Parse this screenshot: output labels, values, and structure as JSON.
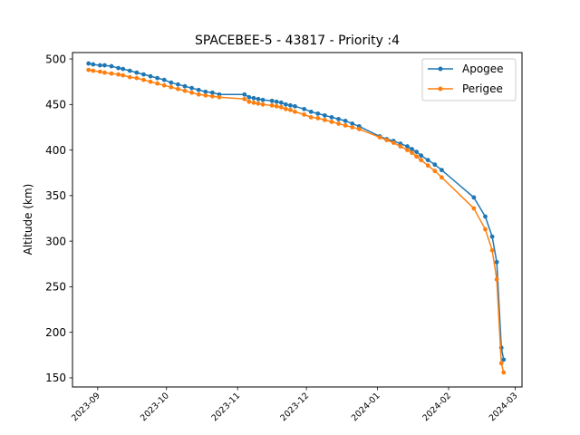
{
  "chart_data": {
    "type": "line",
    "title": "SPACEBEE-5 - 43817 - Priority :4",
    "xlabel": "",
    "ylabel": "Altitude (km)",
    "x_type": "date",
    "xlim": [
      "2023-08-21",
      "2024-03-04"
    ],
    "ylim": [
      140,
      507
    ],
    "x_ticks": [
      "2023-09-01",
      "2023-10-01",
      "2023-11-01",
      "2023-12-01",
      "2024-01-01",
      "2024-02-01",
      "2024-03-01"
    ],
    "x_tick_labels": [
      "2023-09",
      "2023-10",
      "2023-11",
      "2023-12",
      "2024-01",
      "2024-02",
      "2024-03"
    ],
    "y_ticks": [
      150,
      200,
      250,
      300,
      350,
      400,
      450,
      500
    ],
    "y_tick_labels": [
      "150",
      "200",
      "250",
      "300",
      "350",
      "400",
      "450",
      "500"
    ],
    "grid": false,
    "legend_position": "top-right",
    "series": [
      {
        "name": "Apogee",
        "color": "#1f77b4",
        "x": [
          "2023-08-28",
          "2023-08-30",
          "2023-09-02",
          "2023-09-04",
          "2023-09-07",
          "2023-09-10",
          "2023-09-12",
          "2023-09-15",
          "2023-09-18",
          "2023-09-21",
          "2023-09-24",
          "2023-09-27",
          "2023-09-30",
          "2023-10-03",
          "2023-10-06",
          "2023-10-09",
          "2023-10-12",
          "2023-10-15",
          "2023-10-18",
          "2023-10-21",
          "2023-10-24",
          "2023-11-04",
          "2023-11-06",
          "2023-11-08",
          "2023-11-10",
          "2023-11-12",
          "2023-11-16",
          "2023-11-18",
          "2023-11-20",
          "2023-11-22",
          "2023-11-24",
          "2023-11-26",
          "2023-11-30",
          "2023-12-03",
          "2023-12-06",
          "2023-12-09",
          "2023-12-12",
          "2023-12-15",
          "2023-12-18",
          "2023-12-21",
          "2023-12-24",
          "2024-01-02",
          "2024-01-05",
          "2024-01-08",
          "2024-01-11",
          "2024-01-14",
          "2024-01-16",
          "2024-01-18",
          "2024-01-20",
          "2024-01-23",
          "2024-01-26",
          "2024-01-29",
          "2024-02-12",
          "2024-02-17",
          "2024-02-20",
          "2024-02-22",
          "2024-02-24",
          "2024-02-25"
        ],
        "y": [
          495,
          494,
          493,
          493,
          492,
          490,
          489,
          487,
          485,
          483,
          481,
          479,
          477,
          474,
          472,
          470,
          468,
          466,
          464,
          463,
          461,
          461,
          458,
          457,
          456,
          455,
          454,
          453,
          452,
          450,
          449,
          448,
          445,
          442,
          440,
          438,
          436,
          434,
          432,
          429,
          426,
          415,
          412,
          410,
          407,
          404,
          401,
          398,
          394,
          389,
          384,
          378,
          348,
          327,
          305,
          277,
          183,
          170
        ]
      },
      {
        "name": "Perigee",
        "color": "#ff7f0e",
        "x": [
          "2023-08-28",
          "2023-08-30",
          "2023-09-02",
          "2023-09-04",
          "2023-09-07",
          "2023-09-10",
          "2023-09-12",
          "2023-09-15",
          "2023-09-18",
          "2023-09-21",
          "2023-09-24",
          "2023-09-27",
          "2023-09-30",
          "2023-10-03",
          "2023-10-06",
          "2023-10-09",
          "2023-10-12",
          "2023-10-15",
          "2023-10-18",
          "2023-10-21",
          "2023-10-24",
          "2023-11-04",
          "2023-11-06",
          "2023-11-08",
          "2023-11-10",
          "2023-11-12",
          "2023-11-16",
          "2023-11-18",
          "2023-11-20",
          "2023-11-22",
          "2023-11-24",
          "2023-11-26",
          "2023-11-30",
          "2023-12-03",
          "2023-12-06",
          "2023-12-09",
          "2023-12-12",
          "2023-12-15",
          "2023-12-18",
          "2023-12-21",
          "2023-12-24",
          "2024-01-02",
          "2024-01-05",
          "2024-01-08",
          "2024-01-11",
          "2024-01-14",
          "2024-01-16",
          "2024-01-18",
          "2024-01-20",
          "2024-01-23",
          "2024-01-26",
          "2024-01-29",
          "2024-02-12",
          "2024-02-17",
          "2024-02-20",
          "2024-02-22",
          "2024-02-24",
          "2024-02-25"
        ],
        "y": [
          488,
          487,
          486,
          485,
          484,
          483,
          482,
          480,
          479,
          477,
          475,
          473,
          471,
          469,
          467,
          465,
          463,
          461,
          460,
          459,
          458,
          456,
          453,
          452,
          451,
          450,
          449,
          448,
          447,
          445,
          444,
          442,
          439,
          436,
          435,
          433,
          431,
          429,
          427,
          425,
          423,
          414,
          411,
          408,
          404,
          400,
          397,
          393,
          389,
          383,
          377,
          370,
          336,
          313,
          290,
          258,
          166,
          156
        ]
      }
    ]
  }
}
